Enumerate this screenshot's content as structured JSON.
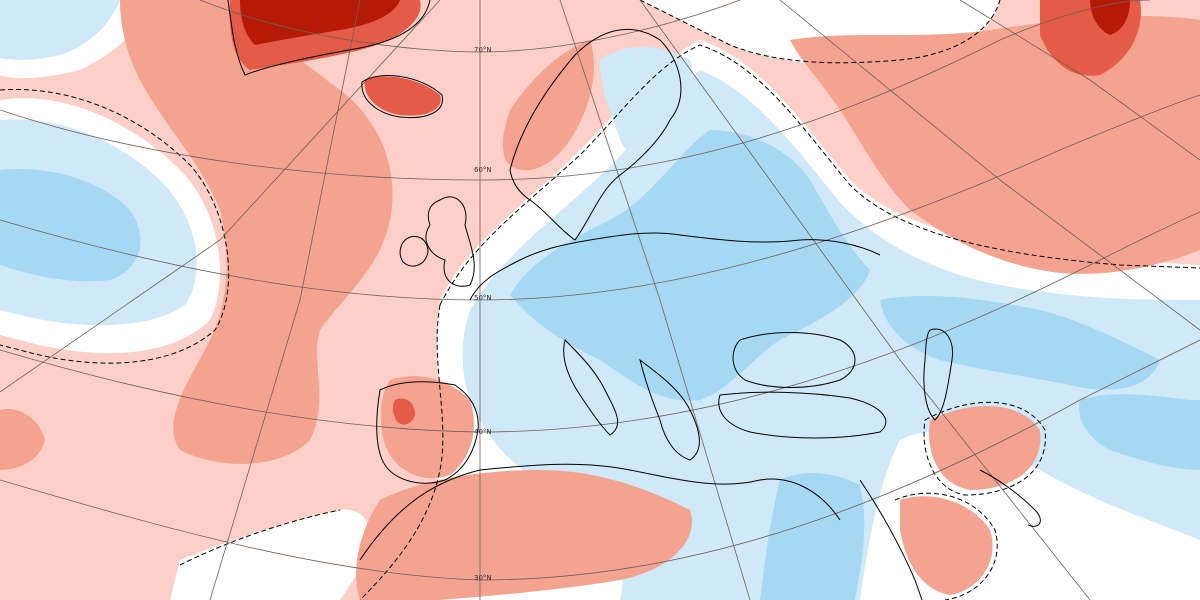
{
  "map": {
    "colors": {
      "background": "#ffffff",
      "warm_1": "#fcd0c8",
      "warm_2": "#f4a391",
      "warm_3": "#e45c47",
      "warm_4": "#b51a06",
      "cool_1": "#cfe9f9",
      "cool_2": "#a6d8f4",
      "coastline": "#000000",
      "graticule": "#6f5f55"
    },
    "latitude_labels": [
      {
        "lat": 70,
        "text": "70°N"
      },
      {
        "lat": 60,
        "text": "60°N"
      },
      {
        "lat": 50,
        "text": "50°N"
      },
      {
        "lat": 40,
        "text": "40°N"
      },
      {
        "lat": 30,
        "text": "30°N"
      }
    ]
  }
}
